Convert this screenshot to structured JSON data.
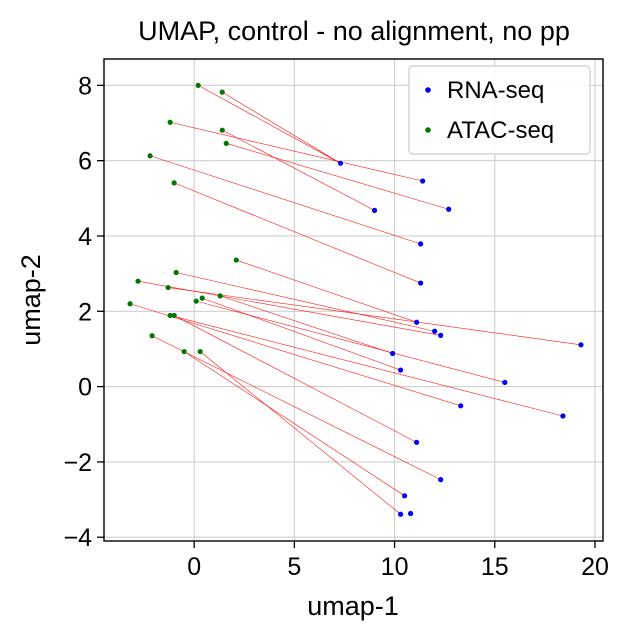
{
  "chart_data": {
    "type": "scatter",
    "title": "UMAP, control - no alignment, no pp",
    "xlabel": "umap-1",
    "ylabel": "umap-2",
    "xlim": [
      -4.5,
      20.4
    ],
    "ylim": [
      -4.1,
      8.7
    ],
    "xticks": [
      0,
      5,
      10,
      15,
      20
    ],
    "yticks": [
      -4,
      -2,
      0,
      2,
      4,
      6,
      8
    ],
    "xtick_labels": [
      "0",
      "5",
      "10",
      "15",
      "20"
    ],
    "ytick_labels": [
      "−4",
      "−2",
      "0",
      "2",
      "4",
      "6",
      "8"
    ],
    "grid": true,
    "legend_position": "top-right",
    "link_color": "#ff0000",
    "series": [
      {
        "name": "RNA-seq",
        "color": "#0000ee",
        "points": [
          [
            7.3,
            5.93
          ],
          [
            11.4,
            5.46
          ],
          [
            9.0,
            4.68
          ],
          [
            12.7,
            4.71
          ],
          [
            11.3,
            3.79
          ],
          [
            11.3,
            2.75
          ],
          [
            11.1,
            1.71
          ],
          [
            12.0,
            1.47
          ],
          [
            12.3,
            1.36
          ],
          [
            19.3,
            1.11
          ],
          [
            9.9,
            0.88
          ],
          [
            10.3,
            0.44
          ],
          [
            15.5,
            0.11
          ],
          [
            13.3,
            -0.51
          ],
          [
            18.4,
            -0.78
          ],
          [
            11.1,
            -1.48
          ],
          [
            12.3,
            -2.47
          ],
          [
            10.5,
            -2.9
          ],
          [
            10.3,
            -3.39
          ],
          [
            10.8,
            -3.37
          ]
        ]
      },
      {
        "name": "ATAC-seq",
        "color": "#007700",
        "points": [
          [
            0.2,
            8.0
          ],
          [
            1.4,
            7.82
          ],
          [
            -1.2,
            7.02
          ],
          [
            1.4,
            6.81
          ],
          [
            1.6,
            6.46
          ],
          [
            -2.2,
            6.13
          ],
          [
            -1.0,
            5.41
          ],
          [
            2.1,
            3.36
          ],
          [
            -0.9,
            3.03
          ],
          [
            -2.8,
            2.8
          ],
          [
            -1.3,
            2.63
          ],
          [
            1.3,
            2.41
          ],
          [
            0.4,
            2.35
          ],
          [
            0.1,
            2.27
          ],
          [
            -3.2,
            2.2
          ],
          [
            -1.2,
            1.89
          ],
          [
            -1.0,
            1.89
          ],
          [
            -2.1,
            1.35
          ],
          [
            -0.5,
            0.93
          ],
          [
            0.3,
            0.93
          ]
        ]
      }
    ],
    "links": [
      [
        0,
        0
      ],
      [
        1,
        0
      ],
      [
        2,
        1
      ],
      [
        3,
        2
      ],
      [
        4,
        3
      ],
      [
        5,
        4
      ],
      [
        6,
        5
      ],
      [
        7,
        6
      ],
      [
        8,
        7
      ],
      [
        9,
        8
      ],
      [
        10,
        9
      ],
      [
        11,
        10
      ],
      [
        12,
        11
      ],
      [
        13,
        12
      ],
      [
        14,
        13
      ],
      [
        15,
        14
      ],
      [
        16,
        15
      ],
      [
        17,
        16
      ],
      [
        18,
        17
      ],
      [
        19,
        18
      ]
    ]
  }
}
